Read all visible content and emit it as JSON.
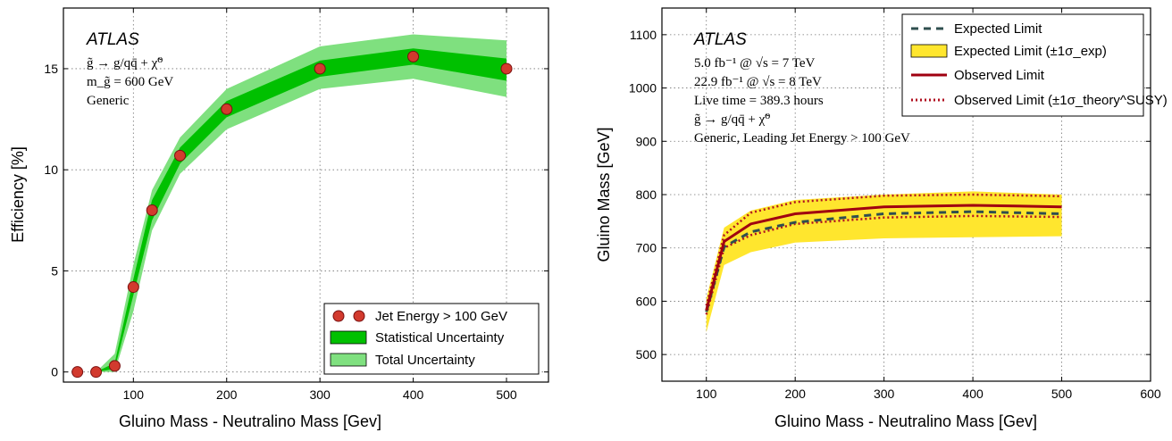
{
  "colors": {
    "stat_band": "#00c000",
    "total_band": "#7fe07f",
    "marker_fill": "#d23a2e",
    "marker_edge": "#7a1010",
    "expected_line": "#2f4f4f",
    "expected_band": "#ffe62e",
    "observed_line": "#a00010",
    "theory_band_line": "#b01020"
  },
  "chart_data": [
    {
      "type": "line",
      "annotation": {
        "atlas": "ATLAS",
        "lines": [
          "g̃ → g/qq̄ + χ̃⁰",
          "m_g̃ = 600 GeV",
          "Generic"
        ]
      },
      "xlabel": "Gluino Mass - Neutralino Mass [Gev]",
      "ylabel": "Efficiency [%]",
      "xlim": [
        25,
        545
      ],
      "ylim": [
        -0.5,
        18
      ],
      "xticks": [
        100,
        200,
        300,
        400,
        500
      ],
      "yticks": [
        0,
        5,
        10,
        15
      ],
      "grid": true,
      "legend_position": "lower-right",
      "legend": [
        "Jet Energy > 100 GeV",
        "Statistical Uncertainty",
        "Total Uncertainty"
      ],
      "x": [
        40,
        60,
        80,
        100,
        120,
        150,
        200,
        300,
        400,
        500
      ],
      "series": [
        {
          "name": "Jet Energy > 100 GeV",
          "values": [
            0.0,
            0.0,
            0.3,
            4.2,
            8.0,
            10.7,
            13.0,
            15.0,
            15.6,
            15.0
          ]
        },
        {
          "name": "Statistical Uncertainty",
          "low": [
            0.0,
            0.0,
            0.15,
            3.8,
            7.5,
            10.3,
            12.6,
            14.6,
            15.2,
            14.4
          ],
          "high": [
            0.0,
            0.0,
            0.45,
            4.6,
            8.5,
            11.1,
            13.4,
            15.4,
            16.0,
            15.5
          ]
        },
        {
          "name": "Total Uncertainty",
          "low": [
            0.0,
            0.0,
            0.0,
            3.0,
            7.0,
            9.8,
            12.0,
            14.0,
            14.5,
            13.6
          ],
          "high": [
            0.0,
            0.0,
            0.9,
            5.3,
            9.0,
            11.6,
            14.0,
            16.1,
            16.7,
            16.4
          ]
        }
      ]
    },
    {
      "type": "line",
      "annotation": {
        "atlas": "ATLAS",
        "lines": [
          "5.0 fb⁻¹ @ √s = 7 TeV",
          "22.9 fb⁻¹ @ √s = 8 TeV",
          "Live time = 389.3 hours",
          "g̃ → g/qq̄ + χ̃⁰",
          "Generic, Leading Jet Energy > 100 GeV"
        ]
      },
      "xlabel": "Gluino Mass - Neutralino Mass [Gev]",
      "ylabel": "Gluino Mass [GeV]",
      "xlim": [
        50,
        600
      ],
      "ylim": [
        450,
        1150
      ],
      "xticks": [
        100,
        200,
        300,
        400,
        500,
        600
      ],
      "yticks": [
        500,
        600,
        700,
        800,
        900,
        1000,
        1100
      ],
      "grid": true,
      "legend_position": "top-right",
      "legend": [
        "Expected Limit",
        "Expected Limit (±1σ_exp)",
        "Observed Limit",
        "Observed Limit (±1σ_theory^SUSY)"
      ],
      "x": [
        100,
        120,
        150,
        200,
        300,
        400,
        500
      ],
      "series": [
        {
          "name": "Expected Limit",
          "values": [
            580,
            702,
            730,
            748,
            764,
            768,
            764
          ]
        },
        {
          "name": "Expected Limit (±1σ_exp)",
          "low": [
            542,
            668,
            692,
            710,
            718,
            720,
            722
          ],
          "high": [
            605,
            738,
            770,
            790,
            800,
            806,
            800
          ]
        },
        {
          "name": "Observed Limit",
          "values": [
            583,
            712,
            745,
            764,
            777,
            780,
            777
          ]
        },
        {
          "name": "Observed Limit (±1σ_theory^SUSY)",
          "low": [
            575,
            700,
            724,
            745,
            757,
            760,
            758
          ],
          "high": [
            592,
            724,
            766,
            786,
            798,
            800,
            797
          ]
        }
      ]
    }
  ]
}
